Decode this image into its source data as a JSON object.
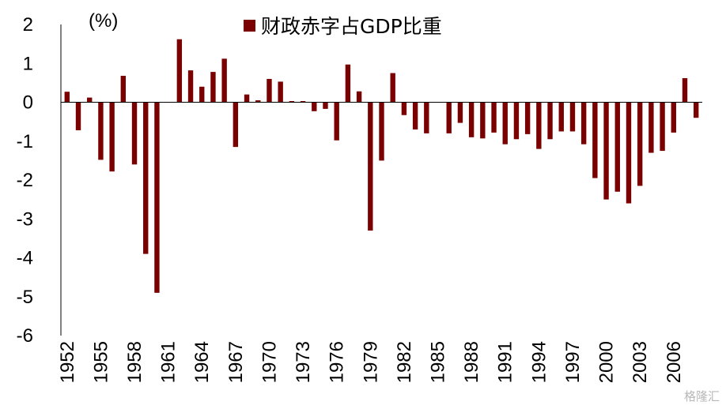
{
  "chart_data": {
    "type": "bar",
    "unit_label": "(%)",
    "series": [
      {
        "name": "财政赤字占GDP比重",
        "color": "#7a0000",
        "x": [
          1952,
          1953,
          1954,
          1955,
          1956,
          1957,
          1958,
          1959,
          1960,
          1961,
          1962,
          1963,
          1964,
          1965,
          1966,
          1967,
          1968,
          1969,
          1970,
          1971,
          1972,
          1973,
          1974,
          1975,
          1976,
          1977,
          1978,
          1979,
          1980,
          1981,
          1982,
          1983,
          1984,
          1985,
          1986,
          1987,
          1988,
          1989,
          1990,
          1991,
          1992,
          1993,
          1994,
          1995,
          1996,
          1997,
          1998,
          1999,
          2000,
          2001,
          2002,
          2003,
          2004,
          2005,
          2006,
          2007,
          2008
        ],
        "values": [
          0.27,
          -0.72,
          0.12,
          -1.48,
          -1.78,
          0.68,
          -1.6,
          -3.9,
          -4.9,
          0.0,
          1.62,
          0.82,
          0.4,
          0.78,
          1.12,
          -1.15,
          0.2,
          0.05,
          0.6,
          0.53,
          0.03,
          0.03,
          -0.23,
          -0.17,
          -0.98,
          0.97,
          0.28,
          -3.3,
          -1.5,
          0.75,
          -0.33,
          -0.7,
          -0.8,
          0.0,
          -0.8,
          -0.53,
          -0.9,
          -0.93,
          -0.78,
          -1.08,
          -0.95,
          -0.82,
          -1.2,
          -0.95,
          -0.75,
          -0.75,
          -1.08,
          -1.95,
          -2.5,
          -2.3,
          -2.6,
          -2.15,
          -1.3,
          -1.25,
          -0.78,
          0.62,
          -0.4
        ]
      }
    ],
    "ylim": [
      -6,
      2
    ],
    "yticks": [
      "2",
      "1",
      "0",
      "-1",
      "-2",
      "-3",
      "-4",
      "-5",
      "-6"
    ],
    "xticks": [
      "1952",
      "1955",
      "1958",
      "1961",
      "1964",
      "1967",
      "1970",
      "1973",
      "1976",
      "1979",
      "1982",
      "1985",
      "1988",
      "1991",
      "1994",
      "1997",
      "2000",
      "2003",
      "2006"
    ],
    "legend_position": "top-center",
    "grid": false
  },
  "watermark": "格隆汇"
}
